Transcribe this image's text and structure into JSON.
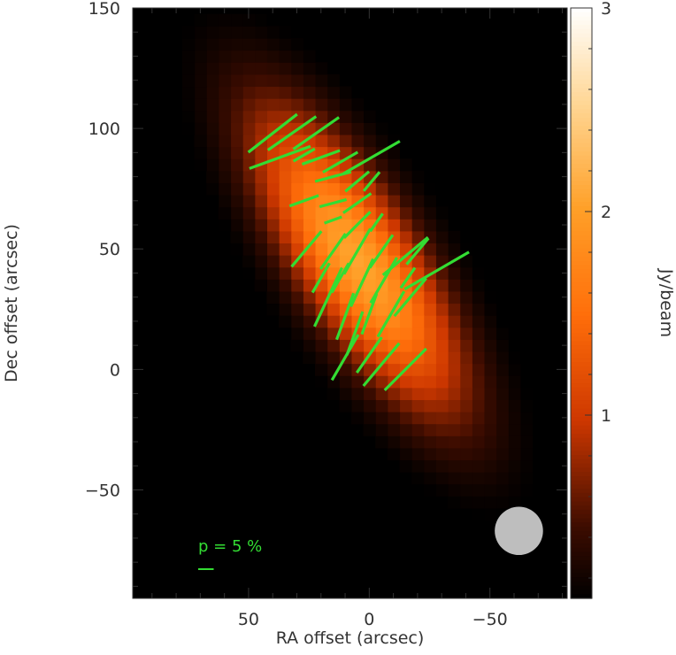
{
  "chart_data": {
    "type": "heatmap",
    "xlabel": "RA offset (arcsec)",
    "ylabel": "Dec offset (arcsec)",
    "xlim": [
      98,
      -82
    ],
    "ylim": [
      -95,
      150
    ],
    "x_ticks": [
      50,
      0,
      -50
    ],
    "y_ticks": [
      -50,
      0,
      50,
      100,
      150
    ],
    "x_tick_labels": [
      "50",
      "0",
      "−50"
    ],
    "y_tick_labels": [
      "−50",
      "0",
      "50",
      "100",
      "150"
    ],
    "colorbar": {
      "label": "Jy/beam",
      "range": [
        0.1,
        3
      ],
      "ticks": [
        1,
        2,
        3
      ],
      "tick_labels": [
        "1",
        "2",
        "3"
      ],
      "colormap": "black-red-orange-white"
    },
    "intensity_map": {
      "pixel_size_arcsec": 5,
      "center": [
        5,
        45
      ],
      "peak_jy_beam": 2.05,
      "major_sigma_arcsec": 50,
      "minor_sigma_arcsec": 17,
      "position_angle_deg_from_north_to_east": 32,
      "threshold_jy_beam": 0.1
    },
    "polarization_vectors": {
      "color": "#33dd33",
      "scale_label": "p = 5 %",
      "scale_p_percent": 5,
      "vectors": [
        {
          "x": 40,
          "y": 98,
          "pa_deg": 52,
          "p_percent": 20
        },
        {
          "x": 32,
          "y": 98,
          "pa_deg": 55,
          "p_percent": 19
        },
        {
          "x": 22,
          "y": 98,
          "pa_deg": 55,
          "p_percent": 18
        },
        {
          "x": 37,
          "y": 88,
          "pa_deg": 70,
          "p_percent": 21
        },
        {
          "x": 27,
          "y": 89,
          "pa_deg": 60,
          "p_percent": 8
        },
        {
          "x": 20,
          "y": 88,
          "pa_deg": 70,
          "p_percent": 13
        },
        {
          "x": 12,
          "y": 86,
          "pa_deg": 60,
          "p_percent": 13
        },
        {
          "x": -1,
          "y": 88,
          "pa_deg": 60,
          "p_percent": 21
        },
        {
          "x": 15,
          "y": 80,
          "pa_deg": 75,
          "p_percent": 12
        },
        {
          "x": 5,
          "y": 78,
          "pa_deg": 50,
          "p_percent": 10
        },
        {
          "x": -1,
          "y": 78,
          "pa_deg": 40,
          "p_percent": 8
        },
        {
          "x": 27,
          "y": 70,
          "pa_deg": 70,
          "p_percent": 10
        },
        {
          "x": 15,
          "y": 69,
          "pa_deg": 75,
          "p_percent": 9
        },
        {
          "x": 5,
          "y": 69,
          "pa_deg": 55,
          "p_percent": 11
        },
        {
          "x": 15,
          "y": 62,
          "pa_deg": 70,
          "p_percent": 6
        },
        {
          "x": 5,
          "y": 60,
          "pa_deg": 45,
          "p_percent": 12
        },
        {
          "x": -3,
          "y": 61,
          "pa_deg": 35,
          "p_percent": 7
        },
        {
          "x": 26,
          "y": 50,
          "pa_deg": 40,
          "p_percent": 15
        },
        {
          "x": 15,
          "y": 49,
          "pa_deg": 35,
          "p_percent": 14
        },
        {
          "x": 5,
          "y": 49,
          "pa_deg": 30,
          "p_percent": 17
        },
        {
          "x": -5,
          "y": 49,
          "pa_deg": 35,
          "p_percent": 13
        },
        {
          "x": -15,
          "y": 47,
          "pa_deg": 50,
          "p_percent": 19
        },
        {
          "x": -20,
          "y": 49,
          "pa_deg": 40,
          "p_percent": 11
        },
        {
          "x": -28,
          "y": 41,
          "pa_deg": 60,
          "p_percent": 24
        },
        {
          "x": 20,
          "y": 38,
          "pa_deg": 30,
          "p_percent": 11
        },
        {
          "x": 12,
          "y": 38,
          "pa_deg": 30,
          "p_percent": 11
        },
        {
          "x": 3,
          "y": 36,
          "pa_deg": 25,
          "p_percent": 17
        },
        {
          "x": -6,
          "y": 37,
          "pa_deg": 30,
          "p_percent": 17
        },
        {
          "x": -16,
          "y": 38,
          "pa_deg": 35,
          "p_percent": 8
        },
        {
          "x": -17,
          "y": 30,
          "pa_deg": 40,
          "p_percent": 16
        },
        {
          "x": 17,
          "y": 30,
          "pa_deg": 25,
          "p_percent": 21
        },
        {
          "x": 10,
          "y": 22,
          "pa_deg": 20,
          "p_percent": 16
        },
        {
          "x": 0,
          "y": 23,
          "pa_deg": 20,
          "p_percent": 14
        },
        {
          "x": -9,
          "y": 23,
          "pa_deg": 30,
          "p_percent": 17
        },
        {
          "x": 6,
          "y": 15,
          "pa_deg": 20,
          "p_percent": 15
        },
        {
          "x": 10,
          "y": 5,
          "pa_deg": 30,
          "p_percent": 17
        },
        {
          "x": 0,
          "y": 6,
          "pa_deg": 35,
          "p_percent": 14
        },
        {
          "x": -5,
          "y": 2,
          "pa_deg": 40,
          "p_percent": 18
        },
        {
          "x": -15,
          "y": 0,
          "pa_deg": 45,
          "p_percent": 19
        }
      ]
    },
    "beam": {
      "center": [
        -62,
        -67
      ],
      "fwhm_arcsec": 20,
      "color": "#bebebe"
    }
  }
}
